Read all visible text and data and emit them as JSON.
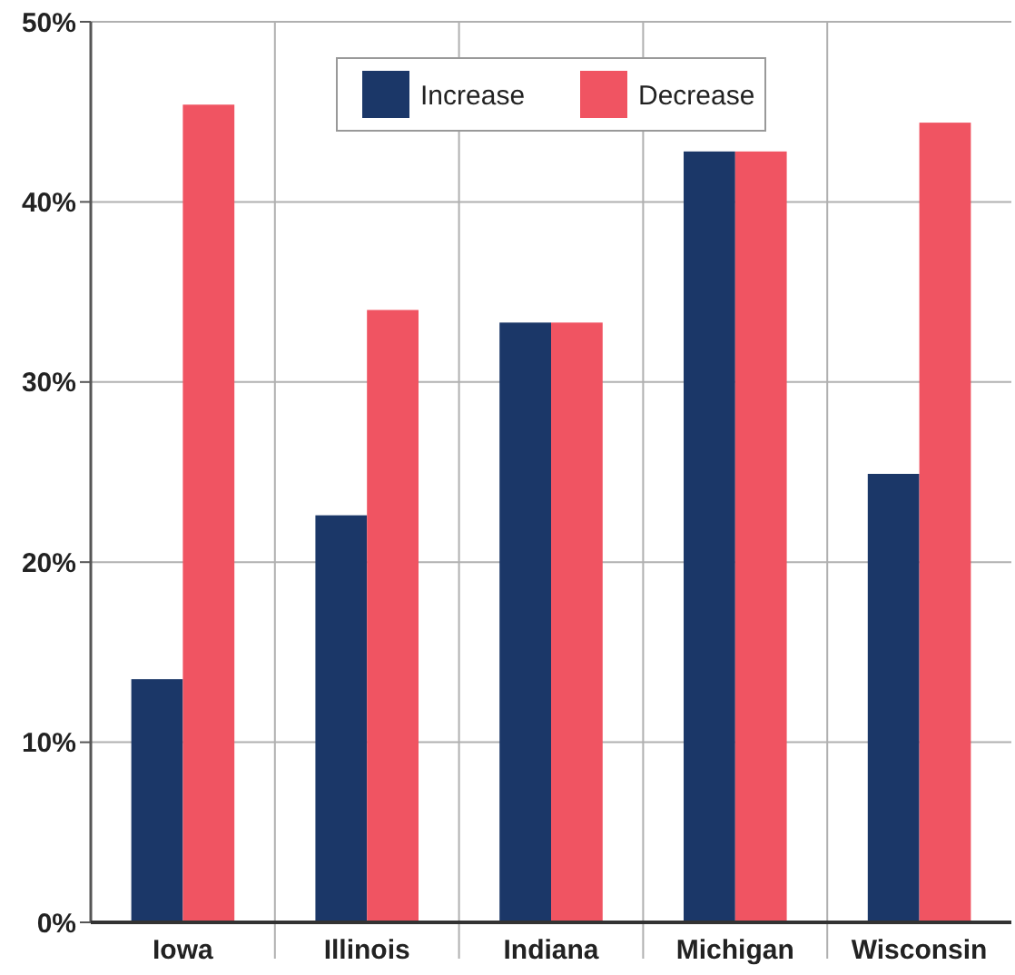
{
  "chart_data": {
    "type": "bar",
    "categories": [
      "Iowa",
      "Illinois",
      "Indiana",
      "Michigan",
      "Wisconsin"
    ],
    "series": [
      {
        "name": "Increase",
        "color": "#1b3768",
        "values": [
          13.5,
          22.6,
          33.3,
          42.8,
          24.9
        ]
      },
      {
        "name": "Decrease",
        "color": "#f05462",
        "values": [
          45.4,
          34.0,
          33.3,
          42.8,
          44.4
        ]
      }
    ],
    "ylim": [
      0,
      50
    ],
    "yticks": [
      {
        "value": 0,
        "label": "0%"
      },
      {
        "value": 10,
        "label": "10%"
      },
      {
        "value": 20,
        "label": "20%"
      },
      {
        "value": 30,
        "label": "30%"
      },
      {
        "value": 40,
        "label": "40%"
      },
      {
        "value": 50,
        "label": "50%"
      }
    ],
    "grid": true,
    "legend": "top"
  }
}
